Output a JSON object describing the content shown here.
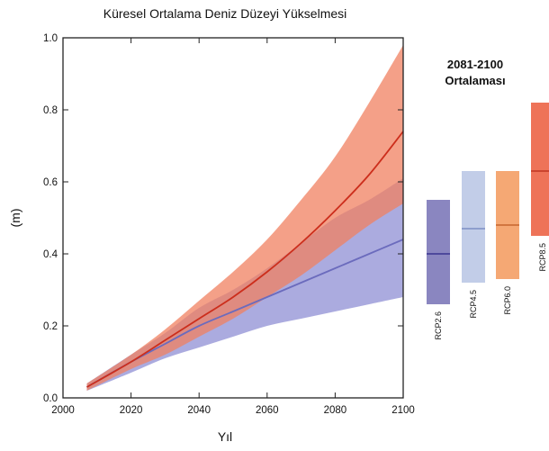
{
  "chart_data": {
    "type": "area",
    "title": "Küresel Ortalama Deniz Düzeyi Yükselmesi",
    "xlabel": "Yıl",
    "ylabel": "(m)",
    "xlim": [
      2000,
      2100
    ],
    "ylim": [
      0.0,
      1.0
    ],
    "xticks": [
      "2000",
      "2020",
      "2040",
      "2060",
      "2080",
      "2100"
    ],
    "yticks": [
      "0.0",
      "0.2",
      "0.4",
      "0.6",
      "0.8",
      "1.0"
    ],
    "x": [
      2007,
      2020,
      2030,
      2040,
      2050,
      2060,
      2070,
      2080,
      2090,
      2100
    ],
    "series": [
      {
        "name": "RCP2.6",
        "color": "#6b6bbd",
        "band_color": "#8f8fd4",
        "mean": [
          0.03,
          0.1,
          0.15,
          0.2,
          0.24,
          0.28,
          0.32,
          0.36,
          0.4,
          0.44
        ],
        "low": [
          0.02,
          0.07,
          0.11,
          0.14,
          0.17,
          0.2,
          0.22,
          0.24,
          0.26,
          0.28
        ],
        "high": [
          0.04,
          0.12,
          0.18,
          0.25,
          0.3,
          0.36,
          0.43,
          0.5,
          0.55,
          0.61
        ]
      },
      {
        "name": "RCP8.5",
        "color": "#cc2e1c",
        "band_color": "#f08060",
        "mean": [
          0.03,
          0.1,
          0.16,
          0.22,
          0.28,
          0.35,
          0.43,
          0.52,
          0.62,
          0.74
        ],
        "low": [
          0.02,
          0.08,
          0.12,
          0.17,
          0.22,
          0.28,
          0.34,
          0.41,
          0.48,
          0.54
        ],
        "high": [
          0.04,
          0.12,
          0.19,
          0.27,
          0.35,
          0.44,
          0.55,
          0.67,
          0.82,
          0.98
        ]
      }
    ],
    "average_panel": {
      "title_line1": "2081-2100",
      "title_line2": "Ortalaması",
      "bars": [
        {
          "name": "RCP2.6",
          "low": 0.26,
          "high": 0.55,
          "mean": 0.4,
          "fill": "#8a86c0",
          "line": "#3a3590"
        },
        {
          "name": "RCP4.5",
          "low": 0.32,
          "high": 0.63,
          "mean": 0.47,
          "fill": "#c2cde8",
          "line": "#7d8fc4"
        },
        {
          "name": "RCP6.0",
          "low": 0.33,
          "high": 0.63,
          "mean": 0.48,
          "fill": "#f5a874",
          "line": "#c7652f"
        },
        {
          "name": "RCP8.5",
          "low": 0.45,
          "high": 0.82,
          "mean": 0.63,
          "fill": "#ee7358",
          "line": "#bf3420"
        }
      ]
    }
  }
}
